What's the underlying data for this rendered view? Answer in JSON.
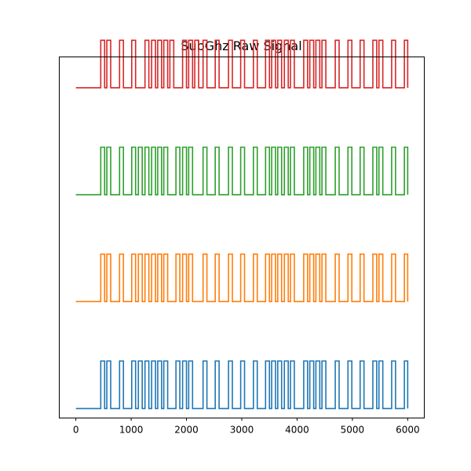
{
  "chart_data": {
    "type": "line",
    "title": "SubGhz Raw Signal",
    "xlabel": "",
    "ylabel": "",
    "xlim": [
      -300,
      6300
    ],
    "ylim": [
      -0.2,
      7.4
    ],
    "xticks": [
      0,
      1000,
      2000,
      3000,
      4000,
      5000,
      6000
    ],
    "xtick_labels": [
      "0",
      "1000",
      "2000",
      "3000",
      "4000",
      "5000",
      "6000"
    ],
    "yticks_visible": false,
    "grid": false,
    "legend": "none",
    "pulse_width": 70,
    "series": [
      {
        "color": "#1f77b4",
        "offset": 0,
        "high": 1,
        "rise_times": [
          450,
          560,
          790,
          1010,
          1130,
          1250,
          1370,
          1480,
          1590,
          1810,
          1930,
          2040,
          2300,
          2520,
          2760,
          2980,
          3210,
          3430,
          3540,
          3650,
          3770,
          3880,
          4120,
          4230,
          4340,
          4450,
          4690,
          4920,
          5140,
          5370,
          5480,
          5710,
          5940
        ]
      },
      {
        "color": "#ff7f0e",
        "offset": 2.25,
        "high": 1,
        "rise_times": [
          450,
          560,
          790,
          1010,
          1130,
          1250,
          1370,
          1480,
          1590,
          1810,
          1930,
          2040,
          2300,
          2520,
          2760,
          2980,
          3210,
          3430,
          3540,
          3650,
          3770,
          3880,
          4120,
          4230,
          4340,
          4450,
          4690,
          4920,
          5140,
          5370,
          5480,
          5710,
          5940
        ]
      },
      {
        "color": "#2ca02c",
        "offset": 4.5,
        "high": 1,
        "rise_times": [
          450,
          560,
          790,
          1010,
          1130,
          1250,
          1370,
          1480,
          1590,
          1810,
          1930,
          2040,
          2300,
          2520,
          2760,
          2980,
          3210,
          3430,
          3540,
          3650,
          3770,
          3880,
          4120,
          4230,
          4340,
          4450,
          4690,
          4920,
          5140,
          5370,
          5480,
          5710,
          5940
        ]
      },
      {
        "color": "#d62728",
        "offset": 6.75,
        "high": 1,
        "rise_times": [
          450,
          560,
          790,
          1010,
          1250,
          1370,
          1480,
          1590,
          1700,
          1930,
          2040,
          2150,
          2300,
          2520,
          2760,
          2980,
          3210,
          3430,
          3540,
          3650,
          3770,
          3880,
          4120,
          4230,
          4340,
          4450,
          4690,
          4920,
          5140,
          5370,
          5480,
          5710,
          5940
        ]
      }
    ]
  }
}
